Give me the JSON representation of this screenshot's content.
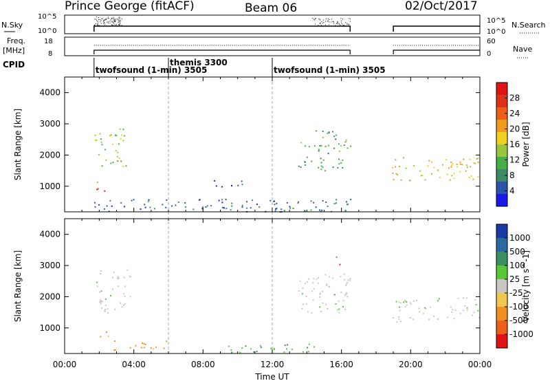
{
  "header": {
    "station": "Prince George (fitACF)",
    "beam": "Beam 06",
    "date": "02/Oct/2017"
  },
  "noise_panel": {
    "left_label": "N.Sky",
    "right_label": "N.Search",
    "left_ticks": [
      "10^5",
      "10^0"
    ],
    "right_ticks": [
      "10^5",
      "10^0"
    ]
  },
  "freq_panel": {
    "left_label_1": "Freq.",
    "left_label_2": "[MHz]",
    "right_label": "Nave",
    "left_ticks": [
      "18",
      "8"
    ],
    "right_ticks": [
      "60",
      "0"
    ]
  },
  "cpid": {
    "label": "CPID",
    "segments": [
      {
        "start_hour": 1.7,
        "text": "twofsound (1-min) 3505",
        "row": 2
      },
      {
        "start_hour": 6.0,
        "text": "themis 3300",
        "row": 1
      },
      {
        "start_hour": 12.0,
        "text": "twofsound (1-min) 3505",
        "row": 2
      }
    ]
  },
  "time_axis": {
    "xlabel": "Time UT",
    "tick_labels": [
      "00:00",
      "04:00",
      "08:00",
      "12:00",
      "16:00",
      "20:00",
      "00:00"
    ],
    "range_hours": [
      0,
      24
    ],
    "major_hours": [
      0,
      4,
      8,
      12,
      16,
      20,
      24
    ]
  },
  "chart_data": [
    {
      "type": "heatmap",
      "title": "",
      "ylabel": "Slant Range [km]",
      "xlabel": "",
      "xlim": [
        0,
        24
      ],
      "ylim": [
        180,
        4500
      ],
      "ytick_labels": [
        "1000",
        "2000",
        "3000",
        "4000"
      ],
      "yticks": [
        1000,
        2000,
        3000,
        4000
      ],
      "colorbar": {
        "label": "Power [dB]",
        "tick_labels": [
          "4",
          "8",
          "12",
          "16",
          "20",
          "24",
          "28"
        ],
        "colors": [
          "#1a1ae6",
          "#2a55a8",
          "#3a8a62",
          "#46b046",
          "#98c63c",
          "#f0d020",
          "#f09a20",
          "#ec6018",
          "#e03018",
          "#e01414"
        ]
      },
      "scatter_regions": [
        {
          "x": [
            1.7,
            2.4
          ],
          "y": [
            800,
            1000
          ],
          "value": 28
        },
        {
          "x": [
            1.8,
            2.4
          ],
          "y": [
            1100,
            1250
          ],
          "value": 18
        },
        {
          "x": [
            1.7,
            3.6
          ],
          "y": [
            1600,
            2900
          ],
          "value": 14
        },
        {
          "x": [
            13.5,
            16.5
          ],
          "y": [
            1500,
            2800
          ],
          "value": 10
        },
        {
          "x": [
            18.9,
            24.0
          ],
          "y": [
            1200,
            2000
          ],
          "value": 18
        },
        {
          "x": [
            1.7,
            16.5
          ],
          "y": [
            200,
            600
          ],
          "value": 6
        },
        {
          "x": [
            8.5,
            11.0
          ],
          "y": [
            1000,
            1250
          ],
          "value": 5
        }
      ]
    },
    {
      "type": "heatmap",
      "title": "",
      "ylabel": "Slant Range [km]",
      "xlabel": "Time UT",
      "xlim": [
        0,
        24
      ],
      "ylim": [
        180,
        4500
      ],
      "ytick_labels": [
        "1000",
        "2000",
        "3000",
        "4000"
      ],
      "yticks": [
        1000,
        2000,
        3000,
        4000
      ],
      "colorbar": {
        "label": "Velocity [m s^-1]",
        "tick_labels": [
          "1000",
          "500",
          "100",
          "25",
          "-25",
          "-100",
          "-500",
          "-1000"
        ],
        "colors": [
          "#1a3aa8",
          "#2a6aa0",
          "#3a9060",
          "#58c838",
          "#c8c8c0",
          "#f0c850",
          "#f09020",
          "#ec6018",
          "#e01414"
        ]
      },
      "scatter_regions": [
        {
          "x": [
            1.7,
            3.8
          ],
          "y": [
            1500,
            2900
          ],
          "value": 0
        },
        {
          "x": [
            13.5,
            16.5
          ],
          "y": [
            1500,
            2800
          ],
          "value": 0
        },
        {
          "x": [
            18.9,
            24.0
          ],
          "y": [
            1200,
            2000
          ],
          "value": 0
        },
        {
          "x": [
            1.8,
            2.6
          ],
          "y": [
            700,
            1050
          ],
          "value": -400
        },
        {
          "x": [
            2.6,
            6.0
          ],
          "y": [
            300,
            600
          ],
          "value": -400
        },
        {
          "x": [
            9.0,
            14.5
          ],
          "y": [
            200,
            500
          ],
          "value": 150
        },
        {
          "x": [
            15.6,
            16.0
          ],
          "y": [
            3000,
            3300
          ],
          "value": -700
        }
      ]
    }
  ]
}
